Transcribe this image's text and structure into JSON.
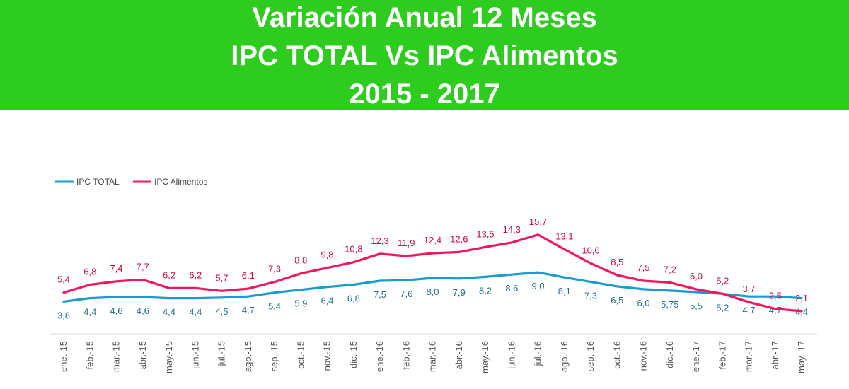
{
  "header": {
    "title_line1": "Variación Anual 12 Meses",
    "title_line2": "IPC TOTAL Vs IPC Alimentos",
    "title_line3": "2015 - 2017"
  },
  "chart_data": {
    "type": "line",
    "title": "Variación Anual 12 Meses IPC TOTAL Vs IPC Alimentos 2015 - 2017",
    "categories": [
      "ene.-15",
      "feb.-15",
      "mar.-15",
      "abr.-15",
      "may.-15",
      "jun.-15",
      "jul.-15",
      "ago.-15",
      "sep.-15",
      "oct.-15",
      "nov.-15",
      "dic.-15",
      "ene.-16",
      "feb.-16",
      "mar.-16",
      "abr.-16",
      "may.-16",
      "jun.-16",
      "jul.-16",
      "ago.-16",
      "sep.-16",
      "oct.-16",
      "nov.-16",
      "dic.-16",
      "ene.-17",
      "feb.-17",
      "mar.-17",
      "abr.-17",
      "may.-17"
    ],
    "series": [
      {
        "name": "IPC TOTAL",
        "color": "#1a9bce",
        "label_color": "#1f6f8f",
        "values": [
          3.8,
          4.4,
          4.6,
          4.6,
          4.4,
          4.4,
          4.5,
          4.7,
          5.4,
          5.9,
          6.4,
          6.8,
          7.5,
          7.6,
          8.0,
          7.9,
          8.2,
          8.6,
          9.0,
          8.1,
          7.3,
          6.5,
          6.0,
          5.75,
          5.5,
          5.2,
          4.7,
          4.7,
          4.4
        ],
        "labels": [
          "3,8",
          "4,4",
          "4,6",
          "4,6",
          "4,4",
          "4,4",
          "4,5",
          "4,7",
          "5,4",
          "5,9",
          "6,4",
          "6,8",
          "7,5",
          "7,6",
          "8,0",
          "7,9",
          "8,2",
          "8,6",
          "9,0",
          "8,1",
          "7,3",
          "6,5",
          "6,0",
          "5,75",
          "5,5",
          "5,2",
          "4,7",
          "4,7",
          "4,4"
        ]
      },
      {
        "name": "IPC Alimentos",
        "color": "#f0185a",
        "label_color": "#d2063f",
        "values": [
          5.4,
          6.8,
          7.4,
          7.7,
          6.2,
          6.2,
          5.7,
          6.1,
          7.3,
          8.8,
          9.8,
          10.8,
          12.3,
          11.9,
          12.4,
          12.6,
          13.5,
          14.3,
          15.7,
          13.1,
          10.6,
          8.5,
          7.5,
          7.2,
          6.0,
          5.2,
          3.7,
          2.5,
          2.1
        ],
        "labels": [
          "5,4",
          "6,8",
          "7,4",
          "7,7",
          "6,2",
          "6,2",
          "5,7",
          "6,1",
          "7,3",
          "8,8",
          "9,8",
          "10,8",
          "12,3",
          "11,9",
          "12,4",
          "12,6",
          "13,5",
          "14,3",
          "15,7",
          "13,1",
          "10,6",
          "8,5",
          "7,5",
          "7,2",
          "6,0",
          "5,2",
          "3,7",
          "2,5",
          "2,1"
        ]
      }
    ],
    "legend_position": "top-left",
    "grid": false
  }
}
